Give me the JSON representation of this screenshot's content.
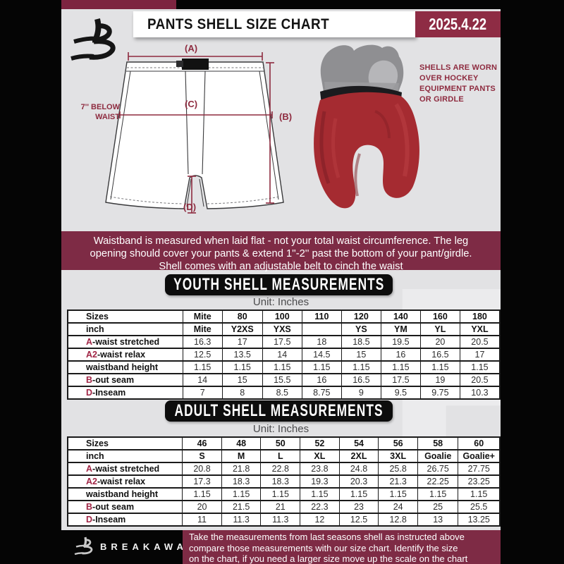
{
  "colors": {
    "page_bg": "#e2e2e4",
    "maroon_banner": "#7e2b45",
    "maroon_accent": "#8e2c44",
    "maroon_label": "#8e2b3f",
    "heading_black": "#0d0d0d",
    "shell_red": "#a52b31"
  },
  "header": {
    "title": "PANTS SHELL SIZE CHART",
    "date": "2025.4.22"
  },
  "diagram": {
    "label_a": "(A)",
    "label_b": "(B)",
    "label_c": "(C)",
    "label_d": "(D)",
    "note_l1": "7'' BELOW",
    "note_l2": "WAIST",
    "caption": {
      "l1": "SHELLS ARE WORN",
      "l2": "OVER HOCKEY",
      "l3": "EQUIPMENT PANTS",
      "l4": "OR GIRDLE"
    }
  },
  "info_banner": {
    "l1": "Waistband is measured when laid flat - not your total waist circumference. The leg",
    "l2": "opening should cover your pants & extend 1''-2'' past the bottom of your pant/girdle.",
    "l3": "Shell comes with an adjustable belt to cinch the waist"
  },
  "youth": {
    "heading": "YOUTH SHELL MEASUREMENTS",
    "unit": "Unit: Inches"
  },
  "adult": {
    "heading": "ADULT SHELL MEASUREMENTS",
    "unit": "Unit: Inches"
  },
  "youth_table": {
    "col_header": [
      "Sizes",
      "Mite",
      "80",
      "100",
      "110",
      "120",
      "140",
      "160",
      "180"
    ],
    "inch_row": [
      "inch",
      "Mite",
      "Y2XS",
      "YXS",
      "",
      "YS",
      "YM",
      "YL",
      "YXL"
    ],
    "rows": [
      {
        "prefix": "A",
        "label": "-waist stretched",
        "values": [
          "16.3",
          "17",
          "17.5",
          "18",
          "18.5",
          "19.5",
          "20",
          "20.5"
        ]
      },
      {
        "prefix": "A2",
        "label": "-waist relax",
        "values": [
          "12.5",
          "13.5",
          "14",
          "14.5",
          "15",
          "16",
          "16.5",
          "17"
        ]
      },
      {
        "prefix": "",
        "label": "waistband height",
        "values": [
          "1.15",
          "1.15",
          "1.15",
          "1.15",
          "1.15",
          "1.15",
          "1.15",
          "1.15"
        ]
      },
      {
        "prefix": "B",
        "label": "-out seam",
        "values": [
          "14",
          "15",
          "15.5",
          "16",
          "16.5",
          "17.5",
          "19",
          "20.5"
        ]
      },
      {
        "prefix": "D",
        "label": "-Inseam",
        "values": [
          "7",
          "8",
          "8.5",
          "8.75",
          "9",
          "9.5",
          "9.75",
          "10.3"
        ]
      }
    ]
  },
  "adult_table": {
    "col_header": [
      "Sizes",
      "46",
      "48",
      "50",
      "52",
      "54",
      "56",
      "58",
      "60"
    ],
    "inch_row": [
      "inch",
      "S",
      "M",
      "L",
      "XL",
      "2XL",
      "3XL",
      "Goalie",
      "Goalie+"
    ],
    "rows": [
      {
        "prefix": "A",
        "label": "-waist stretched",
        "values": [
          "20.8",
          "21.8",
          "22.8",
          "23.8",
          "24.8",
          "25.8",
          "26.75",
          "27.75"
        ]
      },
      {
        "prefix": "A2",
        "label": "-waist relax",
        "values": [
          "17.3",
          "18.3",
          "18.3",
          "19.3",
          "20.3",
          "21.3",
          "22.25",
          "23.25"
        ]
      },
      {
        "prefix": "",
        "label": "waistband height",
        "values": [
          "1.15",
          "1.15",
          "1.15",
          "1.15",
          "1.15",
          "1.15",
          "1.15",
          "1.15"
        ]
      },
      {
        "prefix": "B",
        "label": "-out seam",
        "values": [
          "20",
          "21.5",
          "21",
          "22.3",
          "23",
          "24",
          "25",
          "25.5"
        ]
      },
      {
        "prefix": "D",
        "label": "-Inseam",
        "values": [
          "11",
          "11.3",
          "11.3",
          "12",
          "12.5",
          "12.8",
          "13",
          "13.25"
        ]
      }
    ]
  },
  "footer": {
    "brand": "BREAKAWAY",
    "l1": "Take the measurements from last seasons shell as instructed above",
    "l2": "compare those measurements  with our size chart. Identify the size",
    "l3": "on the chart, if you need a larger size move up the scale on the chart"
  },
  "watermark": "B"
}
